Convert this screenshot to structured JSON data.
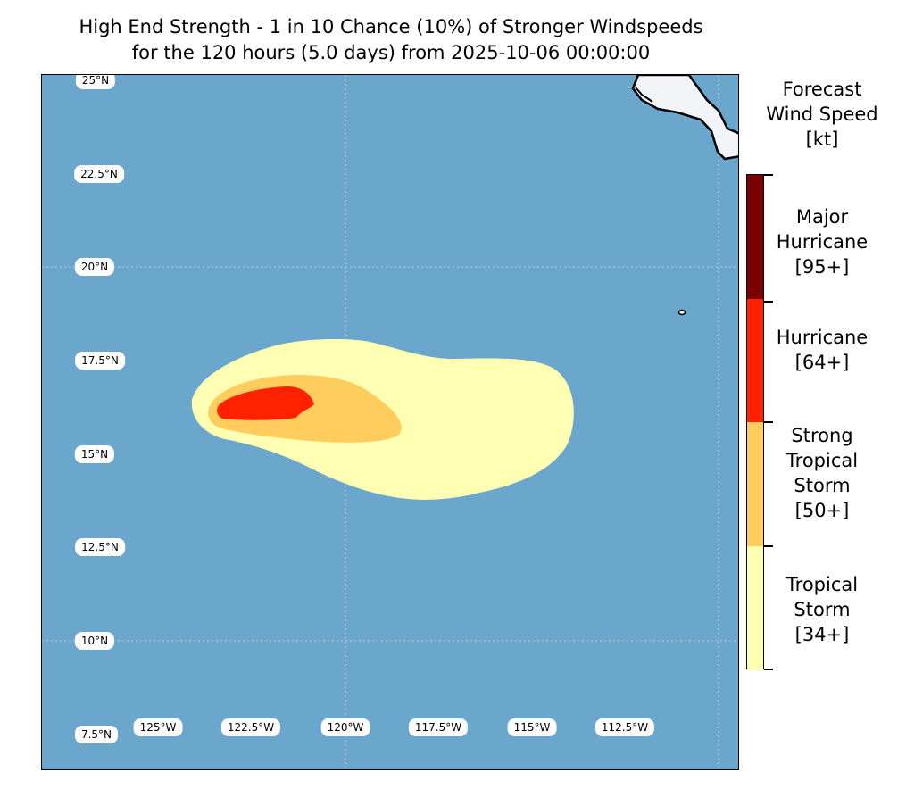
{
  "title": {
    "line1": "High End Strength - 1 in 10 Chance (10%) of Stronger Windspeeds",
    "line2": "for the 120 hours (5.0 days) from 2025-10-06 00:00:00"
  },
  "map": {
    "lat_labels": [
      "25°N",
      "22.5°N",
      "20°N",
      "17.5°N",
      "15°N",
      "12.5°N",
      "10°N",
      "7.5°N"
    ],
    "lon_labels": [
      "125°W",
      "122.5°W",
      "120°W",
      "117.5°W",
      "115°W",
      "112.5°W"
    ],
    "colors": {
      "ocean": "#6ba7cc",
      "land": "#f2f4f8",
      "gridline": "#c8c8c8"
    }
  },
  "colorbar": {
    "title_lines": [
      "Forecast",
      "Wind Speed",
      "[kt]"
    ],
    "categories": [
      {
        "lines": [
          "Major",
          "Hurricane",
          "[95+]"
        ],
        "color": "#7a0000"
      },
      {
        "lines": [
          "Hurricane",
          "[64+]"
        ],
        "color": "#ff2200"
      },
      {
        "lines": [
          "Strong",
          "Tropical",
          "Storm",
          "[50+]"
        ],
        "color": "#ffcc5e"
      },
      {
        "lines": [
          "Tropical",
          "Storm",
          "[34+]"
        ],
        "color": "#ffffb4"
      }
    ]
  }
}
